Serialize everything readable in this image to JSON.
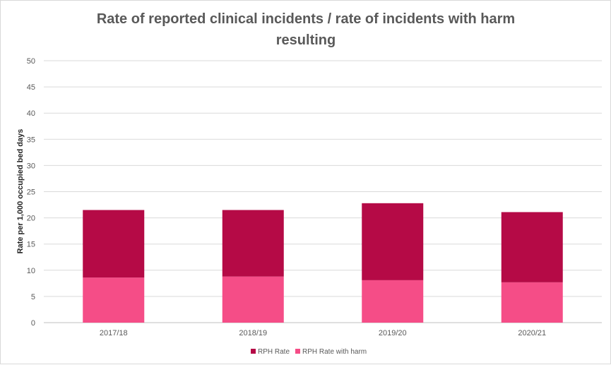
{
  "chart_data": {
    "type": "bar",
    "stacked": true,
    "title_line1": "Rate of reported clinical incidents / rate of incidents with harm",
    "title_line2": "resulting",
    "ylabel": "Rate per 1,000 occupied bed days",
    "xlabel": "",
    "ylim": [
      0,
      50
    ],
    "yticks": [
      0,
      5,
      10,
      15,
      20,
      25,
      30,
      35,
      40,
      45,
      50
    ],
    "grid": true,
    "legend_position": "bottom",
    "categories": [
      "2017/18",
      "2018/19",
      "2019/20",
      "2020/21"
    ],
    "series": [
      {
        "name": "RPH Rate with harm",
        "color": "#f54d87",
        "values": [
          8.6,
          8.8,
          8.1,
          7.7
        ]
      },
      {
        "name": "RPH Rate",
        "color": "#b50a46",
        "values": [
          12.9,
          12.7,
          14.7,
          13.4
        ]
      }
    ],
    "legend_order": [
      "RPH Rate",
      "RPH Rate with harm"
    ]
  }
}
